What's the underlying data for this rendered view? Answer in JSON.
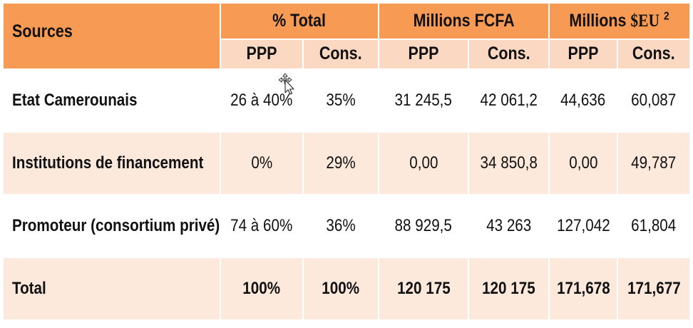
{
  "table": {
    "header": {
      "sources": "Sources",
      "group_pct": "% Total",
      "group_fcfa": "Millions FCFA",
      "group_seu_prefix": "Millions ",
      "group_seu_unit": "$EU",
      "group_seu_sup": "2",
      "sub_ppp": "PPP",
      "sub_cons": "Cons."
    },
    "rows": [
      {
        "label": "Etat Camerounais",
        "pct_ppp": "26 à 40%",
        "pct_cons": "35%",
        "fcfa_ppp": "31 245,5",
        "fcfa_cons": "42 061,2",
        "seu_ppp": "44,636",
        "seu_cons": "60,087"
      },
      {
        "label": "Institutions de financement",
        "pct_ppp": "0%",
        "pct_cons": "29%",
        "fcfa_ppp": "0,00",
        "fcfa_cons": "34 850,8",
        "seu_ppp": "0,00",
        "seu_cons": "49,787"
      },
      {
        "label": "Promoteur (consortium privé)",
        "pct_ppp": "74 à 60%",
        "pct_cons": "36%",
        "fcfa_ppp": "88 929,5",
        "fcfa_cons": "43 263",
        "seu_ppp": "127,042",
        "seu_cons": "61,804"
      }
    ],
    "total": {
      "label": "Total",
      "pct_ppp": "100%",
      "pct_cons": "100%",
      "fcfa_ppp": "120 175",
      "fcfa_cons": "120 175",
      "seu_ppp": "171,678",
      "seu_cons": "171,677"
    },
    "colors": {
      "header_orange": "#f79b54",
      "subheader_peach": "#fbd8c2",
      "row_peach": "#fde9dc",
      "row_white": "#ffffff"
    }
  },
  "cursor": {
    "icon": "move-cursor-icon"
  }
}
